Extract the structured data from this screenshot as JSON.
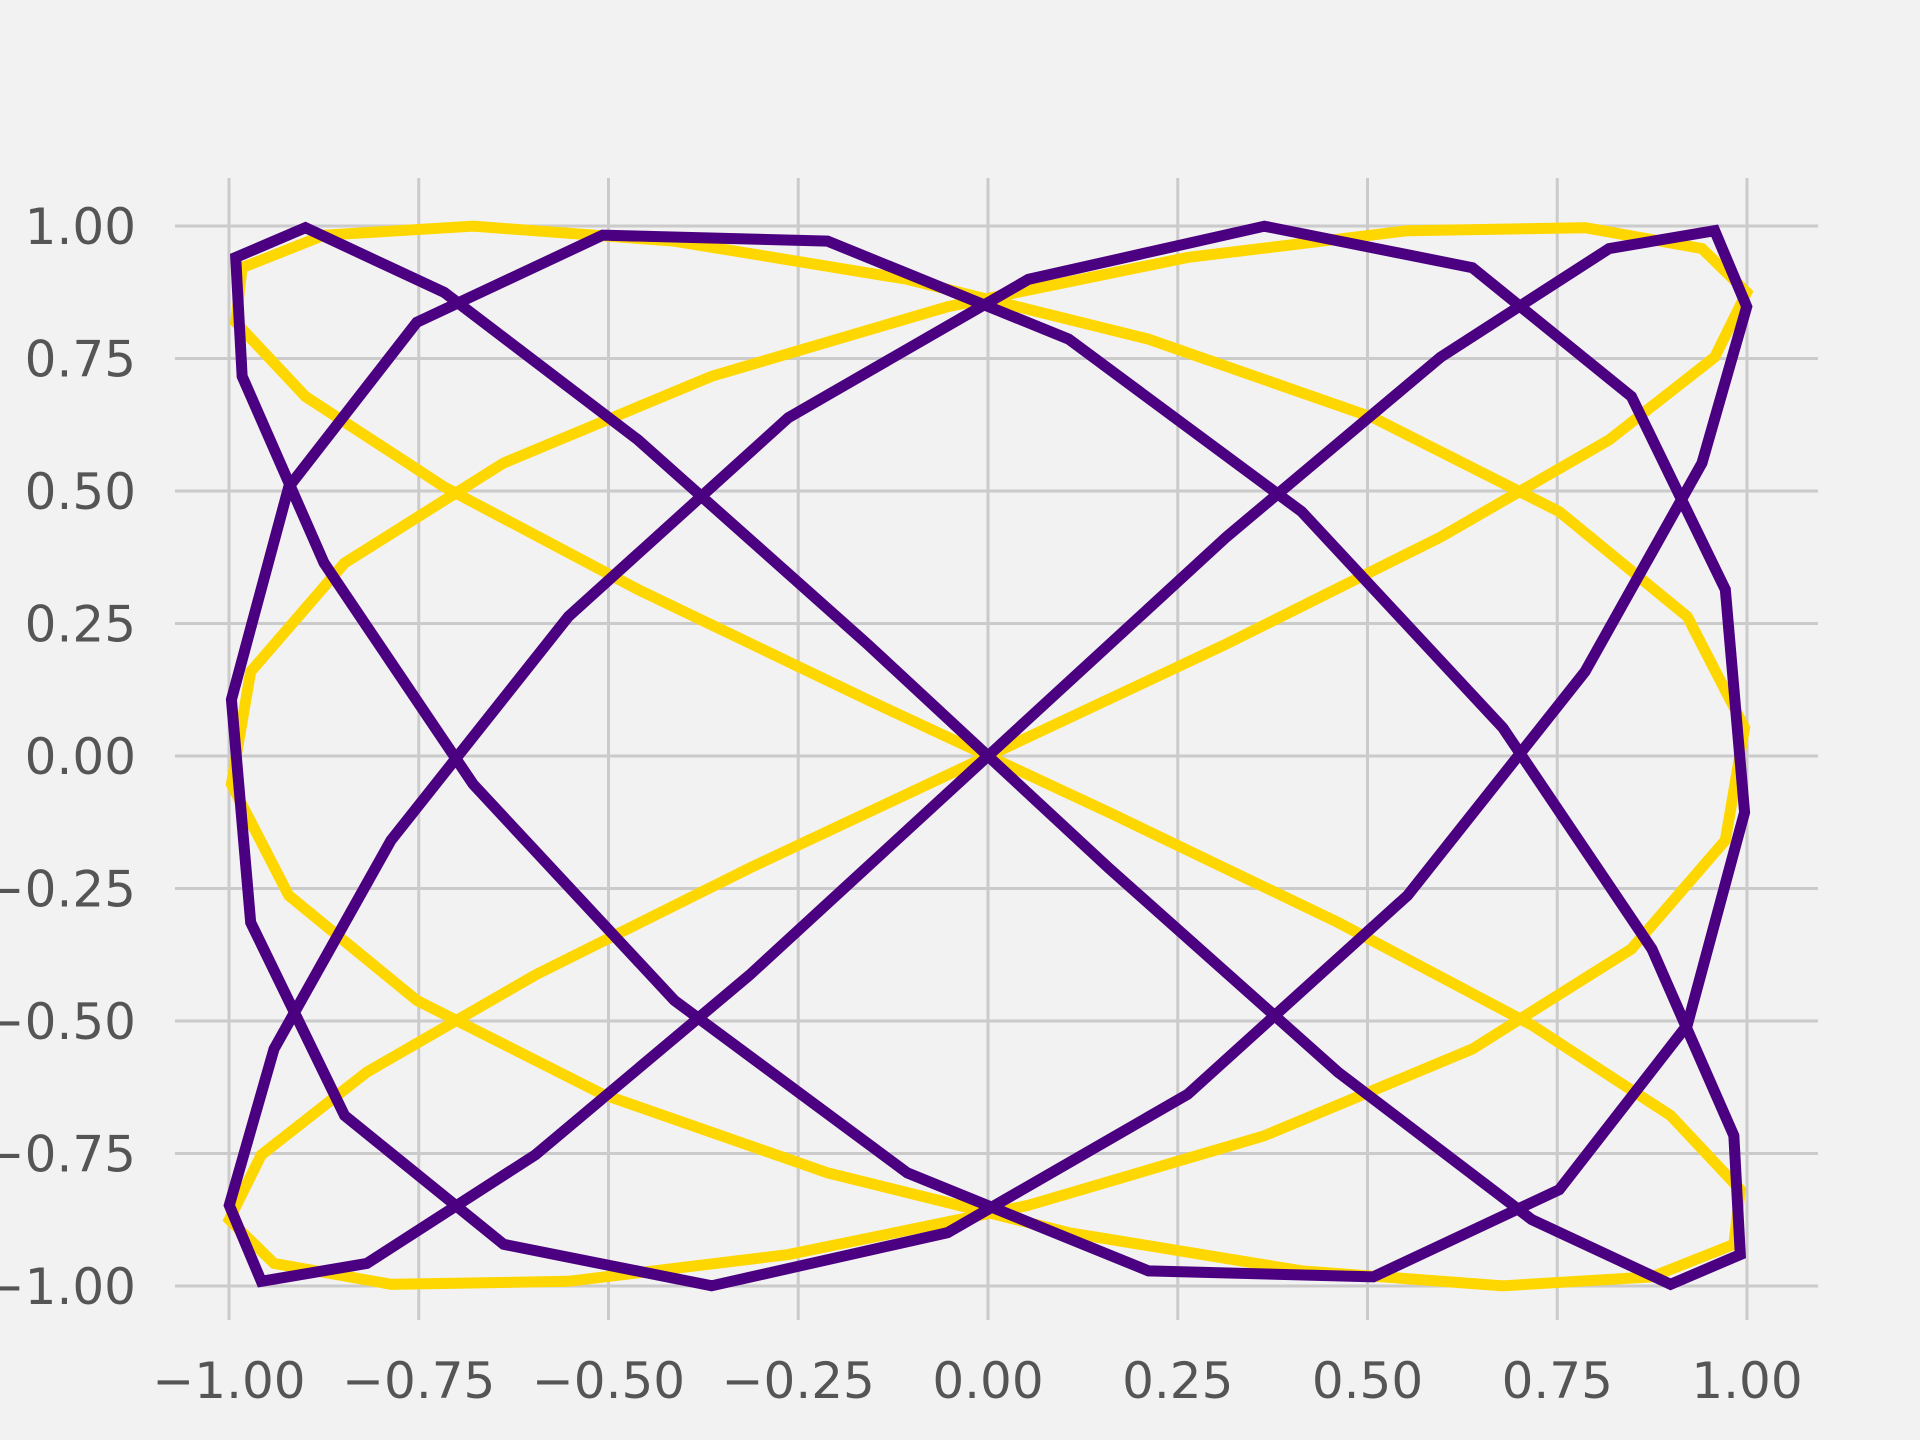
{
  "chart_data": {
    "type": "line",
    "title": "",
    "xlabel": "",
    "ylabel": "",
    "xlim": [
      -1.09,
      1.09
    ],
    "ylim": [
      -1.07,
      1.07
    ],
    "grid": true,
    "legend": "none",
    "x_ticks": [
      "−1.00",
      "−0.75",
      "−0.50",
      "−0.25",
      "0.00",
      "0.25",
      "0.50",
      "0.75",
      "1.00"
    ],
    "x_tick_values": [
      -1.0,
      -0.75,
      -0.5,
      -0.25,
      0.0,
      0.25,
      0.5,
      0.75,
      1.0
    ],
    "y_ticks": [
      "−1.00",
      "−0.75",
      "−0.50",
      "−0.25",
      "0.00",
      "0.25",
      "0.50",
      "0.75",
      "1.00"
    ],
    "y_tick_values": [
      -1.0,
      -0.75,
      -0.5,
      -0.25,
      0.0,
      0.25,
      0.5,
      0.75,
      1.0
    ],
    "series": [
      {
        "color": "#ffd700",
        "curve": "lissajous",
        "x_function": "sin(3t)",
        "y_function": "sin(2t)",
        "t_range": [
          0,
          6.283185
        ],
        "samples": 60
      },
      {
        "color": "#4b0082",
        "curve": "lissajous",
        "x_function": "sin(3t)",
        "y_function": "sin(4t)",
        "t_range": [
          0,
          6.283185
        ],
        "samples": 60
      }
    ]
  }
}
